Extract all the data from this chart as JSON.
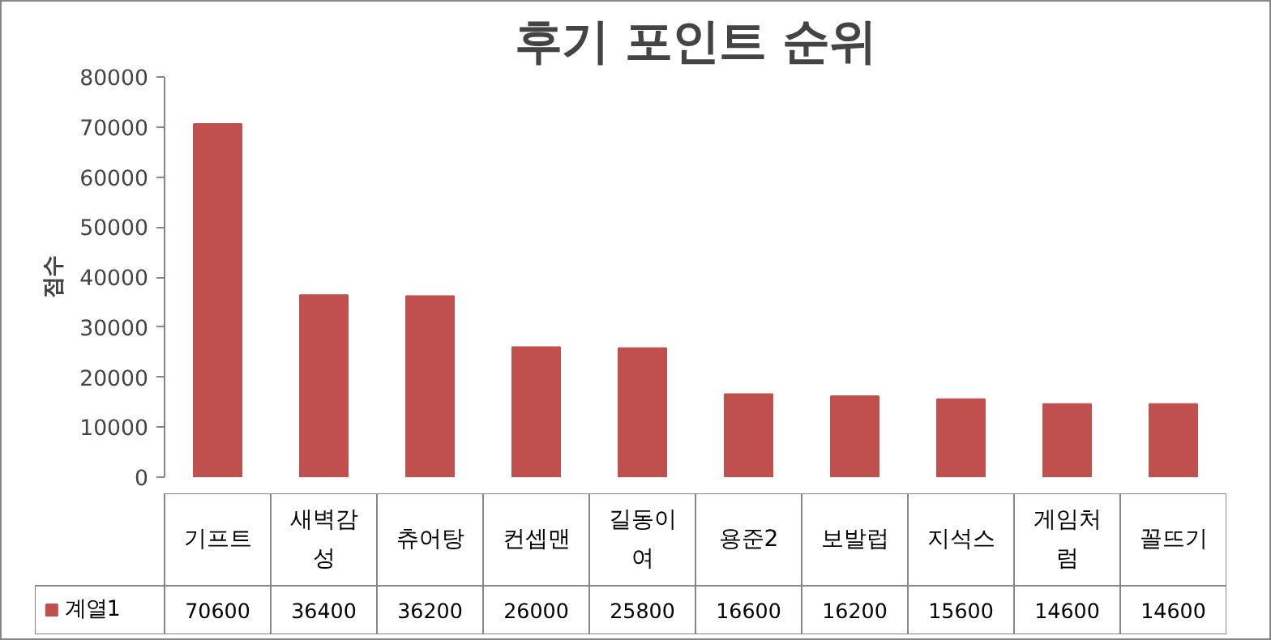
{
  "chart_data": {
    "type": "bar",
    "title": "후기 포인트 순위",
    "ylabel": "점수",
    "categories": [
      "기프트",
      "새벽감성",
      "츄어탕",
      "컨셉맨",
      "길동이여",
      "용준2",
      "보발럽",
      "지석스",
      "게임처럼",
      "꼴뜨기"
    ],
    "series": [
      {
        "name": "계열1",
        "color": "#c0504d",
        "values": [
          70600,
          36400,
          36200,
          26000,
          25800,
          16600,
          16200,
          15600,
          14600,
          14600
        ]
      }
    ],
    "ylim": [
      0,
      80000
    ],
    "yticks": [
      0,
      10000,
      20000,
      30000,
      40000,
      50000,
      60000,
      70000,
      80000
    ],
    "data_labels": true,
    "grid": false
  }
}
